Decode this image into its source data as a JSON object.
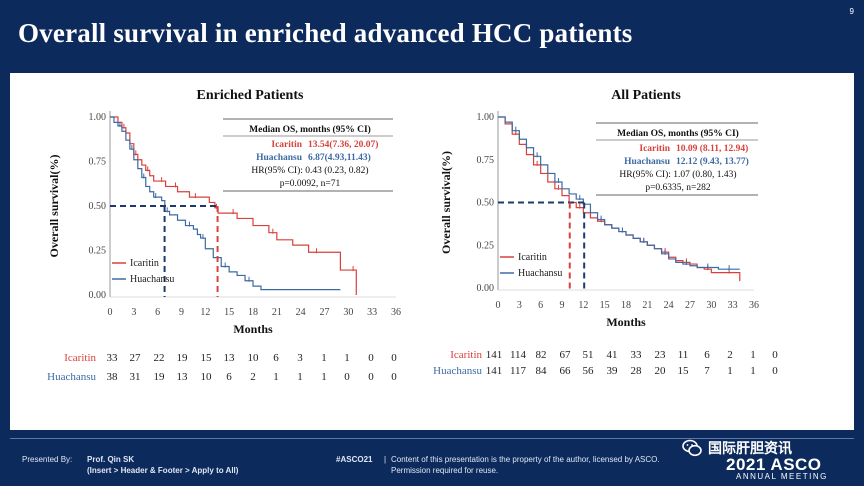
{
  "slide": {
    "number": "9",
    "title": "Overall survival in enriched advanced HCC patients"
  },
  "colors": {
    "icaritin": "#d9413b",
    "huachansu": "#3d6aa3",
    "median_line": "#1d3a6e"
  },
  "chart_data": [
    {
      "type": "line",
      "subtype": "kaplan-meier",
      "title": "Enriched Patients",
      "xlabel": "Months",
      "ylabel": "Overall survival(%)",
      "xlim": [
        0,
        36
      ],
      "ylim": [
        0,
        1
      ],
      "xticks": [
        "0",
        "3",
        "6",
        "9",
        "12",
        "15",
        "18",
        "21",
        "24",
        "27",
        "30",
        "33",
        "36"
      ],
      "yticks": [
        "0.00",
        "0.25",
        "0.50",
        "0.75",
        "1.00"
      ],
      "legend": [
        "Icaritin",
        "Huachansu"
      ],
      "stats": {
        "header": "Median OS, months (95% CI)",
        "icaritin_name": "Icaritin",
        "icaritin_value": "13.54(7.36, 20.07)",
        "huachansu_name": "Huachansu",
        "huachansu_value": "6.87(4.93,11.43)",
        "hr": "HR(95% CI): 0.43 (0.23, 0.82)",
        "p": "p=0.0092, n=71"
      },
      "medians": [
        13.54,
        6.87
      ],
      "series": [
        {
          "name": "Icaritin",
          "x": [
            0,
            1,
            1.5,
            2,
            2.5,
            3,
            3.5,
            4,
            4.5,
            5,
            5.5,
            6,
            7,
            7.5,
            8,
            8.5,
            9,
            10,
            11.5,
            12.5,
            13.2,
            13.6,
            14,
            15,
            16,
            18,
            20,
            21,
            23,
            25,
            27,
            29,
            30.2,
            31
          ],
          "y": [
            1.0,
            0.97,
            0.94,
            0.91,
            0.85,
            0.79,
            0.76,
            0.73,
            0.7,
            0.67,
            0.64,
            0.64,
            0.61,
            0.61,
            0.61,
            0.58,
            0.58,
            0.55,
            0.55,
            0.52,
            0.49,
            0.46,
            0.46,
            0.46,
            0.43,
            0.39,
            0.35,
            0.31,
            0.28,
            0.24,
            0.24,
            0.14,
            0.14,
            0.0
          ]
        },
        {
          "name": "Huachansu",
          "x": [
            0,
            0.5,
            1,
            1.5,
            2,
            2.5,
            3,
            3.5,
            4,
            4.5,
            5,
            5.5,
            6,
            6.5,
            6.9,
            7.5,
            8.5,
            9.5,
            10.5,
            11,
            11.4,
            12,
            13,
            14,
            15,
            16,
            17,
            18,
            19,
            29
          ],
          "y": [
            1.0,
            0.97,
            0.95,
            0.92,
            0.87,
            0.82,
            0.76,
            0.71,
            0.66,
            0.61,
            0.58,
            0.55,
            0.55,
            0.53,
            0.47,
            0.45,
            0.42,
            0.39,
            0.37,
            0.34,
            0.32,
            0.26,
            0.21,
            0.16,
            0.13,
            0.11,
            0.08,
            0.05,
            0.03,
            0.03
          ]
        }
      ],
      "risk_table": [
        {
          "name": "Icaritin",
          "values": [
            "33",
            "27",
            "22",
            "19",
            "15",
            "13",
            "10",
            "6",
            "3",
            "1",
            "1",
            "0",
            "0"
          ]
        },
        {
          "name": "Huachansu",
          "values": [
            "38",
            "31",
            "19",
            "13",
            "10",
            "6",
            "2",
            "1",
            "1",
            "1",
            "0",
            "0",
            "0"
          ]
        }
      ]
    },
    {
      "type": "line",
      "subtype": "kaplan-meier",
      "title": "All Patients",
      "xlabel": "Months",
      "ylabel": "Overall survival(%)",
      "xlim": [
        0,
        36
      ],
      "ylim": [
        0,
        1
      ],
      "xticks": [
        "0",
        "3",
        "6",
        "9",
        "12",
        "15",
        "18",
        "21",
        "24",
        "27",
        "30",
        "33",
        "36"
      ],
      "yticks": [
        "0.00",
        "0.25",
        "0.50",
        "0.75",
        "1.00"
      ],
      "legend": [
        "Icaritin",
        "Huachansu"
      ],
      "stats": {
        "header": "Median OS, months (95% CI)",
        "icaritin_name": "Icaritin",
        "icaritin_value": "10.09 (8.11, 12.94)",
        "huachansu_name": "Huachansu",
        "huachansu_value": "12.12 (9.43, 13.77)",
        "hr": "HR(95% CI): 1.07 (0.80, 1.43)",
        "p": "p=0.6335, n=282"
      },
      "medians": [
        10.09,
        12.12
      ],
      "series": [
        {
          "name": "Icaritin",
          "x": [
            0,
            1,
            2,
            3,
            4,
            5,
            6,
            7,
            8,
            9,
            10,
            11,
            12,
            13,
            14,
            15,
            16,
            17,
            18,
            19,
            20,
            21,
            22,
            23,
            24,
            25,
            26,
            27,
            28,
            29,
            30,
            31,
            32,
            33,
            34
          ],
          "y": [
            1.0,
            0.96,
            0.9,
            0.84,
            0.78,
            0.72,
            0.67,
            0.62,
            0.58,
            0.54,
            0.5,
            0.47,
            0.44,
            0.41,
            0.39,
            0.37,
            0.35,
            0.33,
            0.31,
            0.29,
            0.27,
            0.25,
            0.23,
            0.21,
            0.18,
            0.16,
            0.15,
            0.14,
            0.12,
            0.11,
            0.09,
            0.09,
            0.09,
            0.09,
            0.04
          ]
        },
        {
          "name": "Huachansu",
          "x": [
            0,
            1,
            2,
            3,
            4,
            5,
            6,
            7,
            8,
            9,
            10,
            11,
            12,
            13,
            14,
            15,
            16,
            17,
            18,
            19,
            20,
            21,
            22,
            23,
            24,
            25,
            26,
            27,
            28,
            29,
            30,
            31,
            32,
            33,
            34
          ],
          "y": [
            1.0,
            0.97,
            0.92,
            0.87,
            0.82,
            0.77,
            0.72,
            0.67,
            0.62,
            0.58,
            0.55,
            0.52,
            0.49,
            0.44,
            0.4,
            0.37,
            0.35,
            0.33,
            0.31,
            0.29,
            0.27,
            0.25,
            0.23,
            0.2,
            0.17,
            0.15,
            0.14,
            0.13,
            0.12,
            0.12,
            0.12,
            0.11,
            0.11,
            0.11,
            0.11
          ]
        }
      ],
      "risk_table": [
        {
          "name": "Icaritin",
          "values": [
            "141",
            "114",
            "82",
            "67",
            "51",
            "41",
            "33",
            "23",
            "11",
            "6",
            "2",
            "1",
            "0"
          ]
        },
        {
          "name": "Huachansu",
          "values": [
            "141",
            "117",
            "84",
            "66",
            "56",
            "39",
            "28",
            "20",
            "15",
            "7",
            "1",
            "1",
            "0"
          ]
        }
      ]
    }
  ],
  "footer": {
    "presented_by": "Presented By:",
    "presenter": "Prof. Qin SK",
    "presenter_hint": "(Insert > Header & Footer > Apply to All)",
    "hashtag": "#ASCO21",
    "separator": "|",
    "notice": "Content of this presentation is the property of the author, licensed by ASCO. Permission required for reuse.",
    "watermark": "国际肝胆资讯",
    "asco_year": "2021 ASCO",
    "asco_meeting": "ANNUAL MEETING"
  }
}
